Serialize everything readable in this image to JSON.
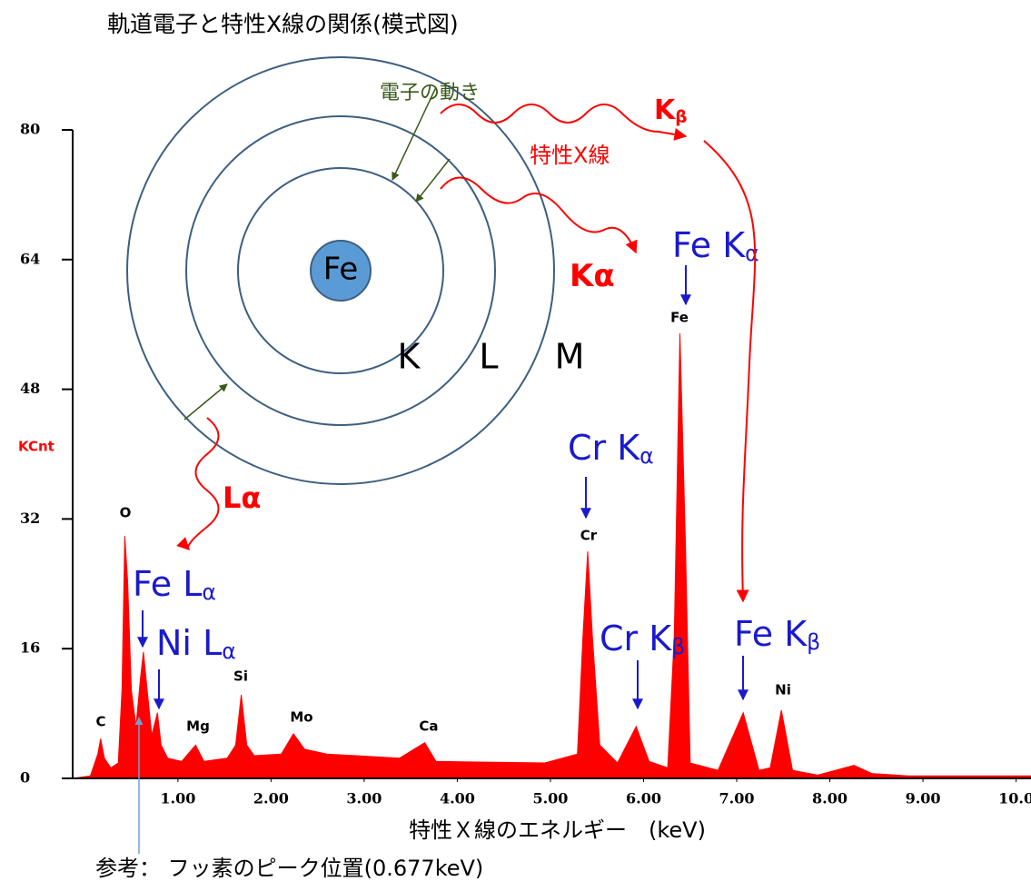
{
  "chart_data": {
    "type": "area",
    "title": "軌道電子と特性X線の関係(模式図)",
    "x_label": "特性Ｘ線のエネルギー　(keV)",
    "y_label": "KCnt",
    "note": "参考： フッ素のピーク位置(0.677keV)",
    "color": "#ff0000",
    "xlim": [
      -0.13,
      10.16
    ],
    "ylim": [
      0,
      80
    ],
    "xticks": [
      {
        "value": 1,
        "label": "1.00"
      },
      {
        "value": 2,
        "label": "2.00"
      },
      {
        "value": 3,
        "label": "3.00"
      },
      {
        "value": 4,
        "label": "4.00"
      },
      {
        "value": 5,
        "label": "5.00"
      },
      {
        "value": 6,
        "label": "6.00"
      },
      {
        "value": 7,
        "label": "7.00"
      },
      {
        "value": 8,
        "label": "8.00"
      },
      {
        "value": 9,
        "label": "9.00"
      },
      {
        "value": 10,
        "label": "10.0"
      }
    ],
    "yticks": [
      0,
      16,
      32,
      48,
      64,
      80
    ],
    "x": [
      -0.13,
      0.06,
      0.14,
      0.17,
      0.21,
      0.28,
      0.36,
      0.4,
      0.43,
      0.46,
      0.5,
      0.55,
      0.6,
      0.63,
      0.67,
      0.72,
      0.78,
      0.82,
      0.89,
      1.04,
      1.19,
      1.28,
      1.53,
      1.62,
      1.68,
      1.74,
      1.82,
      2.11,
      2.24,
      2.36,
      2.6,
      3.38,
      3.65,
      3.77,
      4.94,
      5.29,
      5.35,
      5.4,
      5.45,
      5.53,
      5.72,
      5.92,
      6.06,
      6.26,
      6.33,
      6.39,
      6.45,
      6.5,
      6.8,
      7.07,
      7.24,
      7.36,
      7.48,
      7.6,
      7.87,
      8.26,
      8.45,
      8.84,
      10.16
    ],
    "values": [
      0,
      0.3,
      3,
      4.9,
      2.5,
      1.3,
      1.9,
      10.9,
      29.9,
      24.3,
      10.9,
      6.4,
      12.5,
      15.6,
      10.9,
      5.3,
      8.1,
      4.1,
      2.5,
      2.1,
      4.1,
      2.1,
      2.5,
      4.1,
      10.3,
      4.1,
      2.8,
      3,
      5.5,
      3.6,
      3,
      2.5,
      4.4,
      2.1,
      1.9,
      3,
      17.6,
      28,
      17.6,
      4.1,
      1.9,
      6.4,
      2.1,
      1.3,
      17.6,
      54.9,
      28.8,
      1.9,
      1,
      8.1,
      1,
      1.3,
      8.4,
      1,
      0.4,
      1.6,
      0.6,
      0.3,
      0.3
    ],
    "peak_labels": [
      "C",
      "O",
      "Mg",
      "Si",
      "Mo",
      "Ca",
      "Cr",
      "Fe",
      "Ni"
    ],
    "line_labels": [
      {
        "main": "Fe L",
        "sub": "α"
      },
      {
        "main": "Ni L",
        "sub": "α"
      },
      {
        "main": "Cr K",
        "sub": "α"
      },
      {
        "main": "Cr K",
        "sub": "β"
      },
      {
        "main": "Fe K",
        "sub": "α"
      },
      {
        "main": "Fe K",
        "sub": "β"
      }
    ]
  },
  "diagram": {
    "nucleus": "Fe",
    "shells": [
      "K",
      "L",
      "M"
    ],
    "electron_motion": "電子の動き",
    "xray": "特性X線",
    "transitions": [
      {
        "main": "K",
        "sub": "β"
      },
      {
        "main": "Kα"
      },
      {
        "main": "Lα"
      }
    ]
  }
}
